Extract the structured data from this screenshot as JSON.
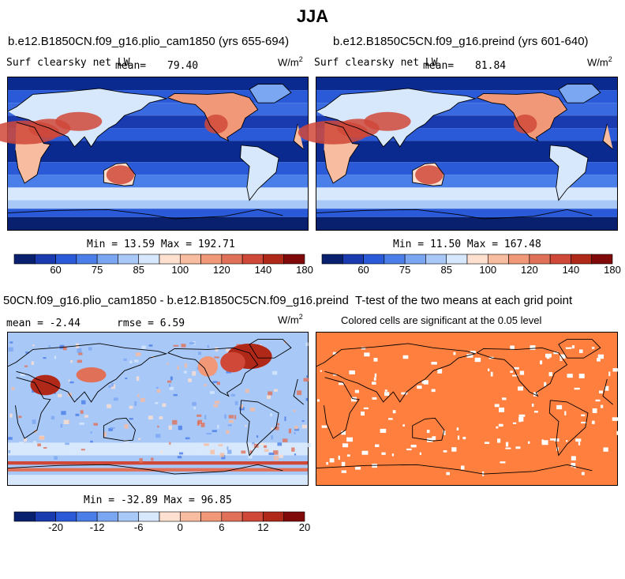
{
  "suptitle": "JJA",
  "panels": [
    {
      "title": "b.e12.B1850CN.f09_g16.plio_cam1850 (yrs 655-694)",
      "variable": "Surf clearsky net LW",
      "mean_label": "mean=",
      "mean_value": "79.40",
      "units": "W/m",
      "units_sup": "2",
      "minmax": "Min =  13.59 Max = 192.71"
    },
    {
      "title": "b.e12.B1850C5CN.f09_g16.preind (yrs 601-640)",
      "variable": "Surf clearsky net LW",
      "mean_label": "mean=",
      "mean_value": "81.84",
      "units": "W/m",
      "units_sup": "2",
      "minmax": "Min =  11.50 Max = 167.48"
    },
    {
      "title": "50CN.f09_g16.plio_cam1850 - b.e12.B1850C5CN.f09_g16.preind",
      "mean_text": "mean =  -2.44",
      "rmse_text": "rmse =   6.59",
      "units": "W/m",
      "units_sup": "2",
      "minmax": "Min = -32.89 Max =  96.85"
    },
    {
      "title": "T-test of the two means at each grid point",
      "subtitle": "Colored cells are significant at the 0.05 level"
    }
  ],
  "chart_data": [
    {
      "type": "heatmap",
      "title": "b.e12.B1850CN.f09_g16.plio_cam1850 (yrs 655-694)",
      "variable": "Surf clearsky net LW",
      "units": "W/m2",
      "mean": 79.4,
      "min": 13.59,
      "max": 192.71,
      "colorbar_ticks": [
        "60",
        "75",
        "85",
        "100",
        "120",
        "140",
        "180"
      ],
      "colorbar_colors": [
        "#08206e",
        "#1a3ab0",
        "#2a5ad8",
        "#4a7ee8",
        "#7aa6f2",
        "#a8c8f8",
        "#d8e8fc",
        "#fde0d0",
        "#f8bca0",
        "#f09878",
        "#e07058",
        "#d04838",
        "#b02818",
        "#800a0a"
      ]
    },
    {
      "type": "heatmap",
      "title": "b.e12.B1850C5CN.f09_g16.preind (yrs 601-640)",
      "variable": "Surf clearsky net LW",
      "units": "W/m2",
      "mean": 81.84,
      "min": 11.5,
      "max": 167.48,
      "colorbar_ticks": [
        "60",
        "75",
        "85",
        "100",
        "120",
        "140",
        "180"
      ],
      "colorbar_colors": [
        "#08206e",
        "#1a3ab0",
        "#2a5ad8",
        "#4a7ee8",
        "#7aa6f2",
        "#a8c8f8",
        "#d8e8fc",
        "#fde0d0",
        "#f8bca0",
        "#f09878",
        "#e07058",
        "#d04838",
        "#b02818",
        "#800a0a"
      ]
    },
    {
      "type": "heatmap",
      "title": "50CN.f09_g16.plio_cam1850 - b.e12.B1850C5CN.f09_g16.preind",
      "units": "W/m2",
      "mean": -2.44,
      "rmse": 6.59,
      "min": -32.89,
      "max": 96.85,
      "colorbar_ticks": [
        "-20",
        "-12",
        "-6",
        "0",
        "6",
        "12",
        "20"
      ],
      "colorbar_colors": [
        "#08206e",
        "#1a3ab0",
        "#2a5ad8",
        "#4a7ee8",
        "#7aa6f2",
        "#a8c8f8",
        "#d8e8fc",
        "#fde0d0",
        "#f8bca0",
        "#f09878",
        "#e07058",
        "#d04838",
        "#b02818",
        "#800a0a"
      ]
    },
    {
      "type": "heatmap",
      "title": "T-test of the two means at each grid point",
      "subtitle": "Colored cells are significant at the 0.05 level",
      "significant_color": "#ff7f3f",
      "non_significant_color": "#ffffff"
    }
  ]
}
